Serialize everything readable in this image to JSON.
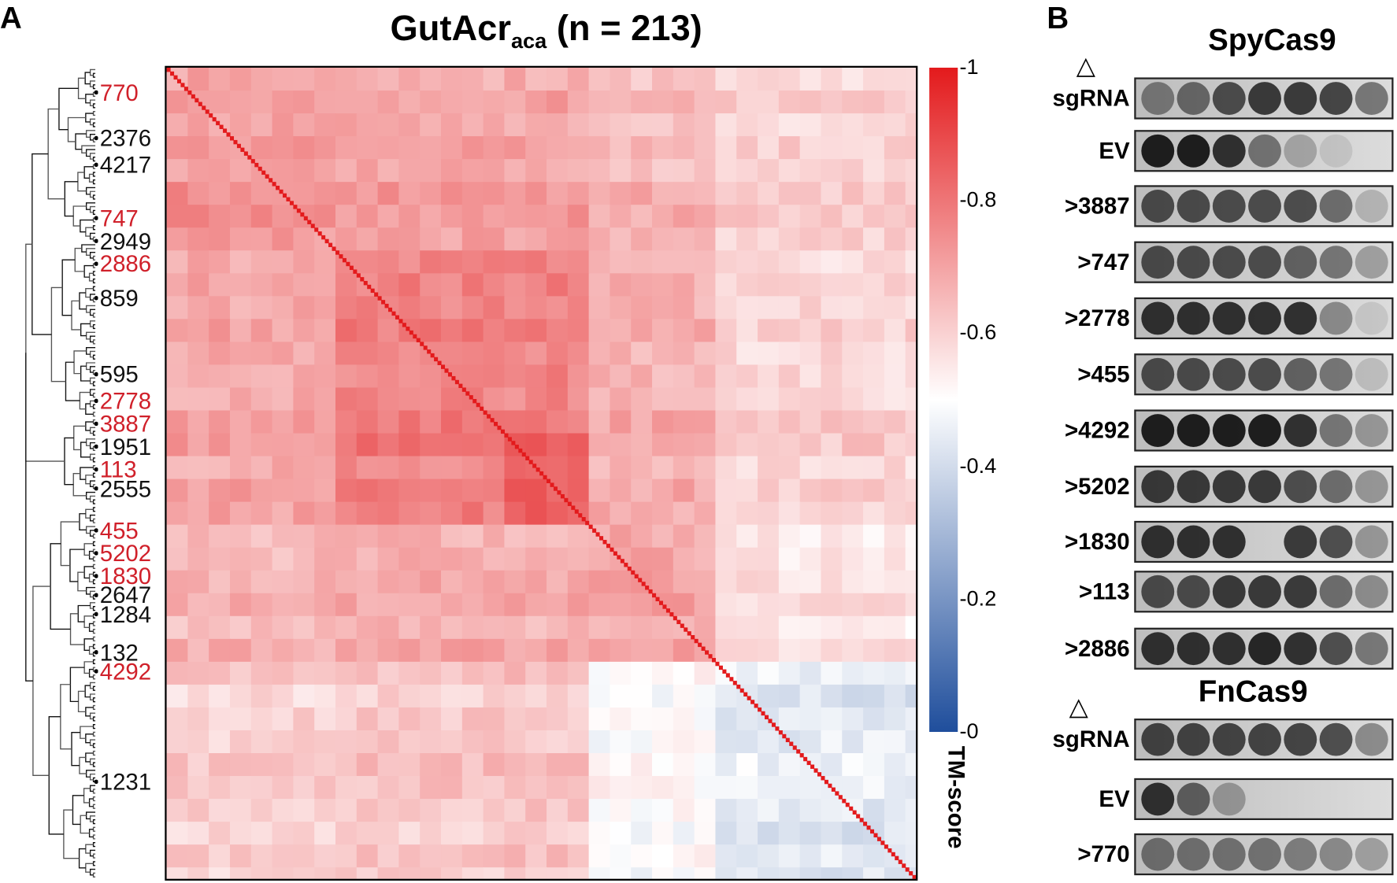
{
  "panel_a": {
    "letter": "A"
  },
  "panel_b": {
    "letter": "B"
  },
  "chart_data": {
    "type": "heatmap",
    "title_main": "GutAcr",
    "title_sub": "aca",
    "title_n": "(n = 213)",
    "n": 213,
    "colorbar": {
      "label": "TM-score",
      "range": [
        0,
        1
      ],
      "ticks": [
        "1",
        "0.8",
        "0.6",
        "0.4",
        "0.2",
        "0"
      ],
      "colors": {
        "low": "#1f4e9c",
        "mid": "#ffffff",
        "high": "#e31a1c"
      }
    },
    "diagonal_value": 1.0,
    "clusters": [
      {
        "start": 0,
        "end": 46
      },
      {
        "start": 46,
        "end": 92
      },
      {
        "start": 92,
        "end": 115
      },
      {
        "start": 115,
        "end": 155
      },
      {
        "start": 155,
        "end": 213
      }
    ],
    "cluster_mean_tm": [
      [
        0.72,
        0.7,
        0.7,
        0.66,
        0.6
      ],
      [
        0.7,
        0.78,
        0.78,
        0.68,
        0.6
      ],
      [
        0.7,
        0.78,
        0.85,
        0.68,
        0.6
      ],
      [
        0.66,
        0.68,
        0.68,
        0.7,
        0.56
      ],
      [
        0.6,
        0.62,
        0.62,
        0.5,
        0.44
      ]
    ],
    "row_labels": [
      {
        "text": "770",
        "row": 6,
        "highlight": true
      },
      {
        "text": "2376",
        "row": 18,
        "highlight": false
      },
      {
        "text": "4217",
        "row": 25,
        "highlight": false
      },
      {
        "text": "747",
        "row": 39,
        "highlight": true
      },
      {
        "text": "2949",
        "row": 45,
        "highlight": false
      },
      {
        "text": "2886",
        "row": 51,
        "highlight": true
      },
      {
        "text": "859",
        "row": 60,
        "highlight": false
      },
      {
        "text": "595",
        "row": 80,
        "highlight": false
      },
      {
        "text": "2778",
        "row": 87,
        "highlight": true
      },
      {
        "text": "3887",
        "row": 93,
        "highlight": true
      },
      {
        "text": "1951",
        "row": 99,
        "highlight": false
      },
      {
        "text": "113",
        "row": 105,
        "highlight": true
      },
      {
        "text": "2555",
        "row": 110,
        "highlight": false
      },
      {
        "text": "455",
        "row": 121,
        "highlight": true
      },
      {
        "text": "5202",
        "row": 127,
        "highlight": true
      },
      {
        "text": "1830",
        "row": 133,
        "highlight": true
      },
      {
        "text": "2647",
        "row": 138,
        "highlight": false
      },
      {
        "text": "1284",
        "row": 143,
        "highlight": false
      },
      {
        "text": "132",
        "row": 153,
        "highlight": false
      },
      {
        "text": "4292",
        "row": 158,
        "highlight": true
      },
      {
        "text": "1231",
        "row": 187,
        "highlight": false
      }
    ],
    "label_colors": {
      "highlight": "#d0202a",
      "normal": "#111111"
    }
  },
  "plaque_assay": {
    "groups": [
      {
        "title": "SpyCas9",
        "rows": [
          {
            "label": "sgRNA",
            "marker": "△",
            "spots": [
              0.45,
              0.55,
              0.7,
              0.8,
              0.8,
              0.75,
              0.5
            ]
          },
          {
            "label": "EV",
            "spots": [
              0.95,
              0.95,
              0.85,
              0.5,
              0.25,
              0.1,
              0
            ]
          },
          {
            "label": ">3887",
            "spots": [
              0.7,
              0.7,
              0.7,
              0.7,
              0.7,
              0.55,
              0.2
            ]
          },
          {
            "label": ">747",
            "spots": [
              0.7,
              0.7,
              0.7,
              0.7,
              0.6,
              0.5,
              0.3
            ]
          },
          {
            "label": ">2778",
            "spots": [
              0.85,
              0.85,
              0.85,
              0.85,
              0.85,
              0.4,
              0.1
            ]
          },
          {
            "label": ">455",
            "spots": [
              0.7,
              0.7,
              0.7,
              0.7,
              0.6,
              0.5,
              0.15
            ]
          },
          {
            "label": ">4292",
            "spots": [
              0.95,
              0.95,
              0.95,
              0.95,
              0.85,
              0.5,
              0.35
            ]
          },
          {
            "label": ">5202",
            "spots": [
              0.8,
              0.8,
              0.8,
              0.8,
              0.7,
              0.55,
              0.35
            ]
          },
          {
            "label": ">1830",
            "spots": [
              0.85,
              0.85,
              0.85,
              0,
              0.8,
              0.7,
              0.35
            ]
          },
          {
            "label": ">113",
            "spots": [
              0.7,
              0.7,
              0.8,
              0.8,
              0.8,
              0.55,
              0.4
            ]
          },
          {
            "label": ">2886",
            "spots": [
              0.85,
              0.85,
              0.85,
              0.9,
              0.85,
              0.7,
              0.5
            ]
          }
        ]
      },
      {
        "title": "FnCas9",
        "rows": [
          {
            "label": "sgRNA",
            "marker": "△",
            "spots": [
              0.75,
              0.75,
              0.75,
              0.75,
              0.75,
              0.7,
              0.4
            ]
          },
          {
            "label": "EV",
            "spots": [
              0.85,
              0.6,
              0.3,
              0,
              0,
              0,
              0
            ]
          },
          {
            "label": ">770",
            "spots": [
              0.5,
              0.5,
              0.5,
              0.5,
              0.45,
              0.4,
              0.3
            ]
          }
        ]
      }
    ]
  }
}
